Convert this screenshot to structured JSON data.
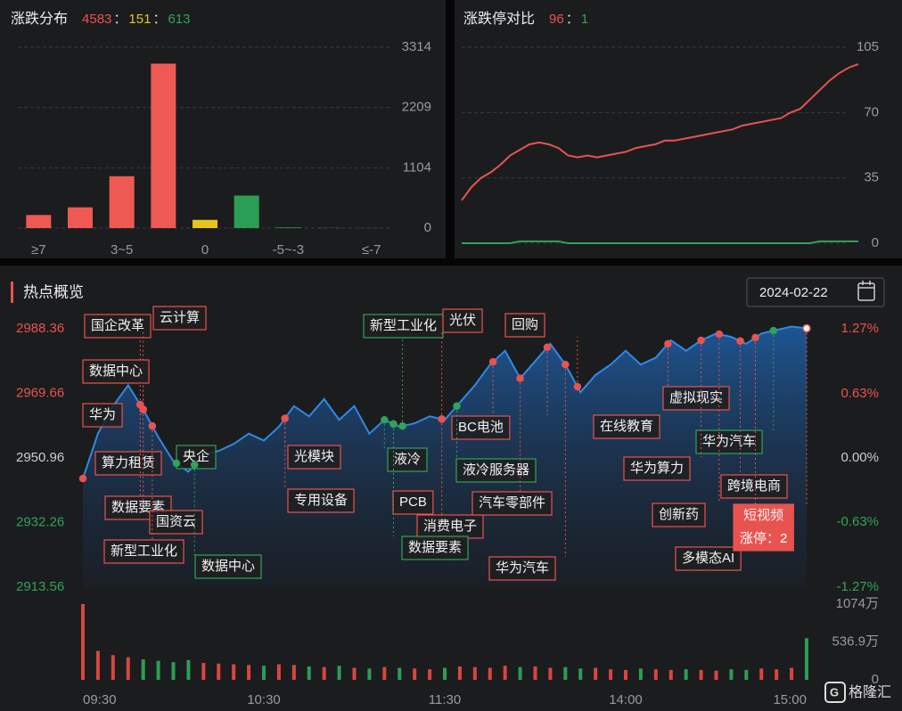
{
  "chart_data": [
    {
      "type": "bar",
      "title": "涨跌分布",
      "separator": "：",
      "summary": [
        {
          "value": 4583,
          "color": "#f0514c"
        },
        {
          "value": 151,
          "color": "#e8c31c"
        },
        {
          "value": 613,
          "color": "#2fa35a"
        }
      ],
      "categories": [
        "≥7",
        null,
        "3~5",
        null,
        "0",
        null,
        "-5~-3",
        null,
        "≤-7"
      ],
      "values": [
        240,
        380,
        950,
        3013,
        151,
        596,
        12,
        3,
        2
      ],
      "colors": [
        "#ee5a53",
        "#ee5a53",
        "#ee5a53",
        "#ee5a53",
        "#e8c31c",
        "#2b9e55",
        "#2b9e55",
        "#2b9e55",
        "#2b9e55"
      ],
      "ylim": [
        0,
        3314
      ],
      "yticks": [
        0,
        1104,
        2209,
        3314
      ],
      "grid": true
    },
    {
      "type": "line",
      "title": "涨跌停对比",
      "separator": "：",
      "summary": [
        {
          "value": 96,
          "color": "#f0514c"
        },
        {
          "value": 1,
          "color": "#2fa35a"
        }
      ],
      "series": [
        {
          "color": "#e8534f",
          "values": [
            23,
            30,
            35,
            38,
            42,
            47,
            50,
            53,
            54,
            53,
            51,
            47,
            46,
            47,
            46,
            47,
            48,
            49,
            51,
            52,
            53,
            55,
            55,
            56,
            57,
            58,
            59,
            60,
            61,
            63,
            64,
            65,
            66,
            67,
            70,
            72,
            77,
            82,
            87,
            91,
            94,
            96
          ]
        },
        {
          "color": "#2fa35a",
          "values": [
            0,
            0,
            0,
            0,
            0,
            0,
            1,
            1,
            1,
            1,
            1,
            0,
            0,
            0,
            0,
            0,
            0,
            0,
            0,
            0,
            0,
            0,
            0,
            0,
            0,
            0,
            0,
            0,
            0,
            0,
            0,
            0,
            0,
            0,
            0,
            0,
            0,
            1,
            1,
            1,
            1,
            1
          ]
        }
      ],
      "ylim": [
        0,
        105
      ],
      "yticks": [
        0,
        35,
        70,
        105
      ],
      "grid": true
    },
    {
      "type": "line",
      "title": "热点概览",
      "date": "2024-02-22",
      "x": [
        0,
        5,
        10,
        15,
        20,
        25,
        30,
        35,
        40,
        45,
        50,
        55,
        60,
        65,
        70,
        75,
        80,
        85,
        90,
        95,
        100,
        105,
        110,
        115,
        120,
        125,
        130,
        135,
        140,
        145,
        150,
        155,
        160,
        165,
        170,
        175,
        180,
        185,
        190,
        195,
        200,
        205,
        210,
        215,
        220,
        225,
        230,
        235,
        240
      ],
      "xlim": [
        0,
        240
      ],
      "xticks": [
        {
          "value": 0,
          "label": "09:30"
        },
        {
          "value": 60,
          "label": "10:30"
        },
        {
          "value": 120,
          "label": "11:30"
        },
        {
          "value": 180,
          "label": "14:00"
        },
        {
          "value": 240,
          "label": "15:00"
        }
      ],
      "series": [
        {
          "color": "#2e8ae6",
          "values": [
            2945,
            2958,
            2966,
            2972,
            2965,
            2957,
            2950,
            2947,
            2952,
            2953,
            2955,
            2958,
            2956,
            2960,
            2966,
            2963,
            2968,
            2962,
            2966,
            2958,
            2962,
            2960,
            2961,
            2963,
            2962,
            2967,
            2972,
            2978,
            2982,
            2974,
            2979,
            2984,
            2978,
            2970,
            2975,
            2978,
            2982,
            2978,
            2980,
            2985,
            2982,
            2985,
            2987,
            2986,
            2984,
            2987,
            2988,
            2989,
            2988.5
          ]
        }
      ],
      "ylim": [
        2913.56,
        2988.36
      ],
      "yticks": [
        2913.56,
        2932.26,
        2950.96,
        2969.66,
        2988.36
      ],
      "y2lim": [
        -1.27,
        1.27
      ],
      "y2ticks": [
        {
          "value": -1.27,
          "label": "-1.27%"
        },
        {
          "value": -0.63,
          "label": "-0.63%"
        },
        {
          "value": 0,
          "label": "0.00%"
        },
        {
          "value": 0.63,
          "label": "0.63%"
        },
        {
          "value": 1.27,
          "label": "1.27%"
        }
      ],
      "annotations": [
        {
          "label": "国企改革",
          "x": 19,
          "color": "#e8534f"
        },
        {
          "label": "云计算",
          "x": 20,
          "color": "#e8534f"
        },
        {
          "label": "数据中心",
          "x": 20,
          "color": "#e8534f"
        },
        {
          "label": "华为",
          "x": 23,
          "color": "#e8534f"
        },
        {
          "label": "算力租赁",
          "x": 0,
          "color": "#e8534f"
        },
        {
          "label": "数据要素",
          "x": 19,
          "color": "#e8534f"
        },
        {
          "label": "国资云",
          "x": 20,
          "color": "#e8534f"
        },
        {
          "label": "新型工业化",
          "x": 23,
          "color": "#e8534f"
        },
        {
          "label": "央企",
          "x": 31,
          "color": "#2fa35a"
        },
        {
          "label": "数据中心",
          "x": 37,
          "color": "#2fa35a"
        },
        {
          "label": "光模块",
          "x": 67,
          "color": "#e8534f"
        },
        {
          "label": "专用设备",
          "x": 67,
          "color": "#e8534f"
        },
        {
          "label": "新型工业化",
          "x": 106,
          "color": "#2fa35a"
        },
        {
          "label": "光伏",
          "x": 119,
          "color": "#e8534f"
        },
        {
          "label": "回购",
          "x": 164,
          "color": "#e8534f"
        },
        {
          "label": "液冷",
          "x": 100,
          "color": "#2fa35a"
        },
        {
          "label": "PCB",
          "x": 103,
          "color": "#e8534f"
        },
        {
          "label": "消费电子",
          "x": 119,
          "color": "#e8534f"
        },
        {
          "label": "数据要素",
          "x": 103,
          "color": "#2fa35a"
        },
        {
          "label": "BC电池",
          "x": 136,
          "color": "#e8534f"
        },
        {
          "label": "液冷服务器",
          "x": 124,
          "color": "#2fa35a"
        },
        {
          "label": "汽车零部件",
          "x": 145,
          "color": "#e8534f"
        },
        {
          "label": "华为汽车",
          "x": 160,
          "color": "#e8534f"
        },
        {
          "label": "在线教育",
          "x": 154,
          "color": "#e8534f"
        },
        {
          "label": "虚拟现实",
          "x": 194,
          "color": "#e8534f"
        },
        {
          "label": "华为汽车",
          "x": 229,
          "color": "#2fa35a"
        },
        {
          "label": "华为算力",
          "x": 205,
          "color": "#e8534f"
        },
        {
          "label": "跨境电商",
          "x": 218,
          "color": "#e8534f"
        },
        {
          "label": "创新药",
          "x": 211,
          "color": "#e8534f"
        },
        {
          "label": "多模态AI",
          "x": 223,
          "color": "#e8534f"
        },
        {
          "label": "短视频",
          "detail": "涨停：2",
          "x": 240,
          "color": "#e8534f"
        }
      ],
      "volume": {
        "values": [
          1074,
          410,
          350,
          320,
          290,
          270,
          250,
          280,
          240,
          230,
          220,
          210,
          200,
          220,
          210,
          190,
          180,
          200,
          170,
          160,
          180,
          170,
          160,
          150,
          170,
          190,
          180,
          170,
          200,
          180,
          190,
          170,
          180,
          160,
          170,
          150,
          140,
          160,
          150,
          140,
          150,
          140,
          130,
          150,
          140,
          160,
          150,
          170,
          590
        ],
        "ylim": [
          0,
          1074
        ],
        "yticks": [
          0,
          {
            "value": 536.9,
            "label": "536.9万"
          },
          {
            "value": 1074,
            "label": "1074万"
          }
        ]
      },
      "watermark": "格隆汇"
    }
  ]
}
